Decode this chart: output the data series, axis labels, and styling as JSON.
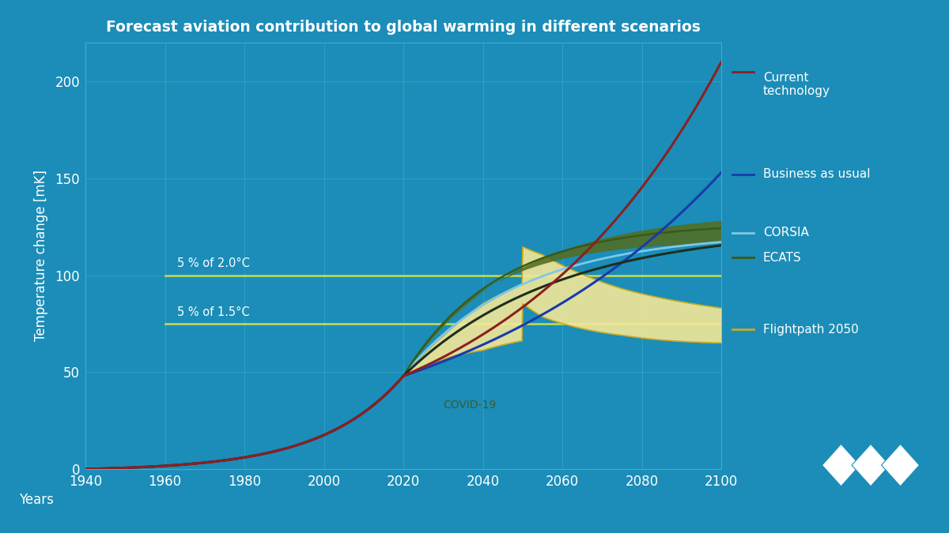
{
  "title": "Forecast aviation contribution to global warming in different scenarios",
  "xlabel": "Years",
  "ylabel": "Temperature change [mK]",
  "bg_color": "#1b8db8",
  "grid_color": "#3aafd4",
  "text_color": "#ffffff",
  "xlim": [
    1940,
    2100
  ],
  "ylim": [
    0,
    220
  ],
  "xticks": [
    1940,
    1960,
    1980,
    2000,
    2020,
    2040,
    2060,
    2080,
    2100
  ],
  "yticks": [
    0,
    50,
    100,
    150,
    200
  ],
  "color_current": "#8b2020",
  "color_bau": "#1a3aad",
  "color_corsia": "#80c8e8",
  "color_ecats_line": "#3a5a18",
  "color_ecats_fill": "#526e22",
  "color_covid": "#1e2e1e",
  "color_fp_line": "#c8aa20",
  "color_fp_fill_light": "#f5e898",
  "color_fp_fill_dark": "#d4b822",
  "color_hline": "#c8dc50",
  "hline_2deg_y": 100,
  "hline_15deg_y": 75,
  "hline_start_x": 1960,
  "label_hline_2deg": "5 % of 2.0°C",
  "label_hline_15deg": "5 % of 1.5°C",
  "label_current": "Current\ntechnology",
  "label_bau": "Business as usual",
  "label_corsia": "CORSIA",
  "label_ecats": "ECATS",
  "label_fp": "Flightpath 2050",
  "label_covid": "COVID-19"
}
